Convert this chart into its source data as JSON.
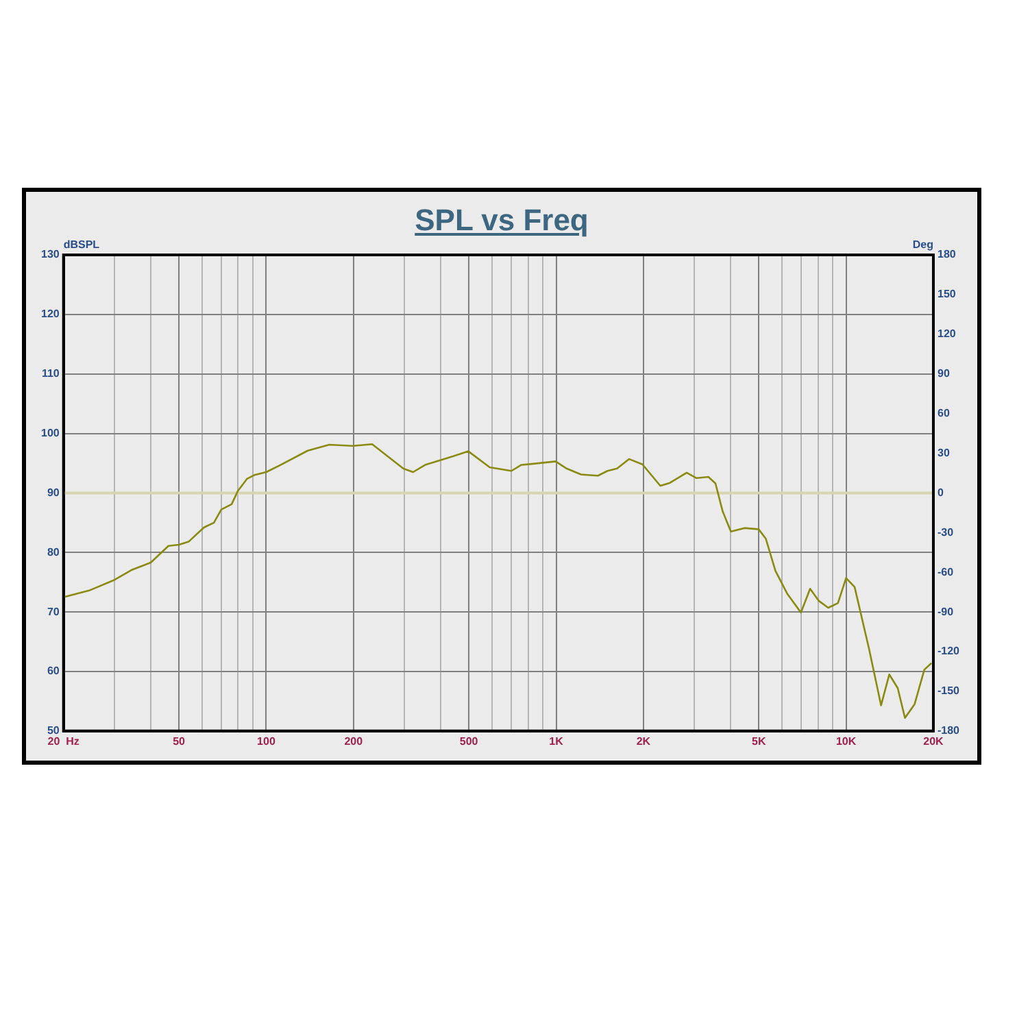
{
  "chart_data": {
    "type": "line",
    "title": "SPL vs Freq",
    "ylabel": "dBSPL",
    "y2label": "Deg",
    "log": "x",
    "grid": true,
    "legend": false,
    "marker": "none",
    "line_style": "solid",
    "xlim": [
      20,
      20000
    ],
    "xticks": [
      {
        "value": 20,
        "label": "20  Hz"
      },
      {
        "value": 30,
        "label": null
      },
      {
        "value": 40,
        "label": null
      },
      50,
      {
        "value": 60,
        "label": null
      },
      {
        "value": 70,
        "label": null
      },
      {
        "value": 80,
        "label": null
      },
      {
        "value": 90,
        "label": null
      },
      100,
      {
        "value": 300,
        "label": null
      },
      {
        "value": 400,
        "label": null
      },
      200,
      500,
      {
        "value": 600,
        "label": null
      },
      {
        "value": 700,
        "label": null
      },
      {
        "value": 800,
        "label": null
      },
      {
        "value": 900,
        "label": null
      },
      {
        "value": 1000,
        "label": "1K"
      },
      {
        "value": 2000,
        "label": "2K"
      },
      {
        "value": 3000,
        "label": null
      },
      {
        "value": 4000,
        "label": null
      },
      {
        "value": 5000,
        "label": "5K"
      },
      {
        "value": 6000,
        "label": null
      },
      {
        "value": 7000,
        "label": null
      },
      {
        "value": 8000,
        "label": null
      },
      {
        "value": 9000,
        "label": null
      },
      {
        "value": 10000,
        "label": "10K"
      },
      {
        "value": 20000,
        "label": "20K"
      }
    ],
    "ylim": [
      50,
      130
    ],
    "yticks": [
      50,
      60,
      70,
      80,
      90,
      100,
      110,
      120,
      130
    ],
    "y2lim": [
      -180,
      180
    ],
    "y2ticks": [
      -180,
      -150,
      -120,
      -90,
      -60,
      -30,
      0,
      30,
      60,
      90,
      120,
      150,
      180
    ],
    "ref_lines": [
      {
        "axis": "y2",
        "value": 0,
        "color": "#d8d4b0"
      }
    ],
    "series": [
      {
        "color": "#8a8a10",
        "x": [
          20,
          24.5,
          30,
          34.5,
          40,
          46,
          50,
          54,
          61,
          66,
          70,
          76,
          80,
          86,
          91,
          100,
          112,
          139,
          165,
          199,
          232,
          297,
          321,
          353,
          444,
          498,
          590,
          701,
          757,
          832,
          996,
          1087,
          1219,
          1393,
          1503,
          1622,
          1784,
          1985,
          2287,
          2468,
          2820,
          3043,
          3350,
          3544,
          3753,
          4006,
          4458,
          4994,
          5288,
          5706,
          6279,
          6986,
          7514,
          8039,
          8677,
          9373,
          10000,
          10700,
          12000,
          13200,
          14090,
          15070,
          15960,
          17230,
          18610,
          19690
        ],
        "values": [
          72.5,
          73.6,
          75.4,
          77.1,
          78.3,
          81.1,
          81.3,
          81.8,
          84.2,
          85.0,
          87.2,
          88.1,
          90.4,
          92.4,
          93.0,
          93.5,
          94.7,
          97.1,
          98.1,
          97.9,
          98.2,
          94.1,
          93.5,
          94.7,
          96.2,
          97.0,
          94.3,
          93.7,
          94.7,
          94.9,
          95.3,
          94.1,
          93.1,
          92.9,
          93.7,
          94.1,
          95.7,
          94.8,
          91.2,
          91.7,
          93.4,
          92.5,
          92.7,
          91.6,
          86.9,
          83.5,
          84.1,
          83.9,
          82.3,
          76.9,
          73.0,
          69.9,
          73.9,
          71.9,
          70.7,
          71.5,
          75.7,
          74.2,
          63.8,
          54.3,
          59.5,
          57.2,
          52.2,
          54.5,
          60.3,
          61.4
        ]
      }
    ]
  }
}
